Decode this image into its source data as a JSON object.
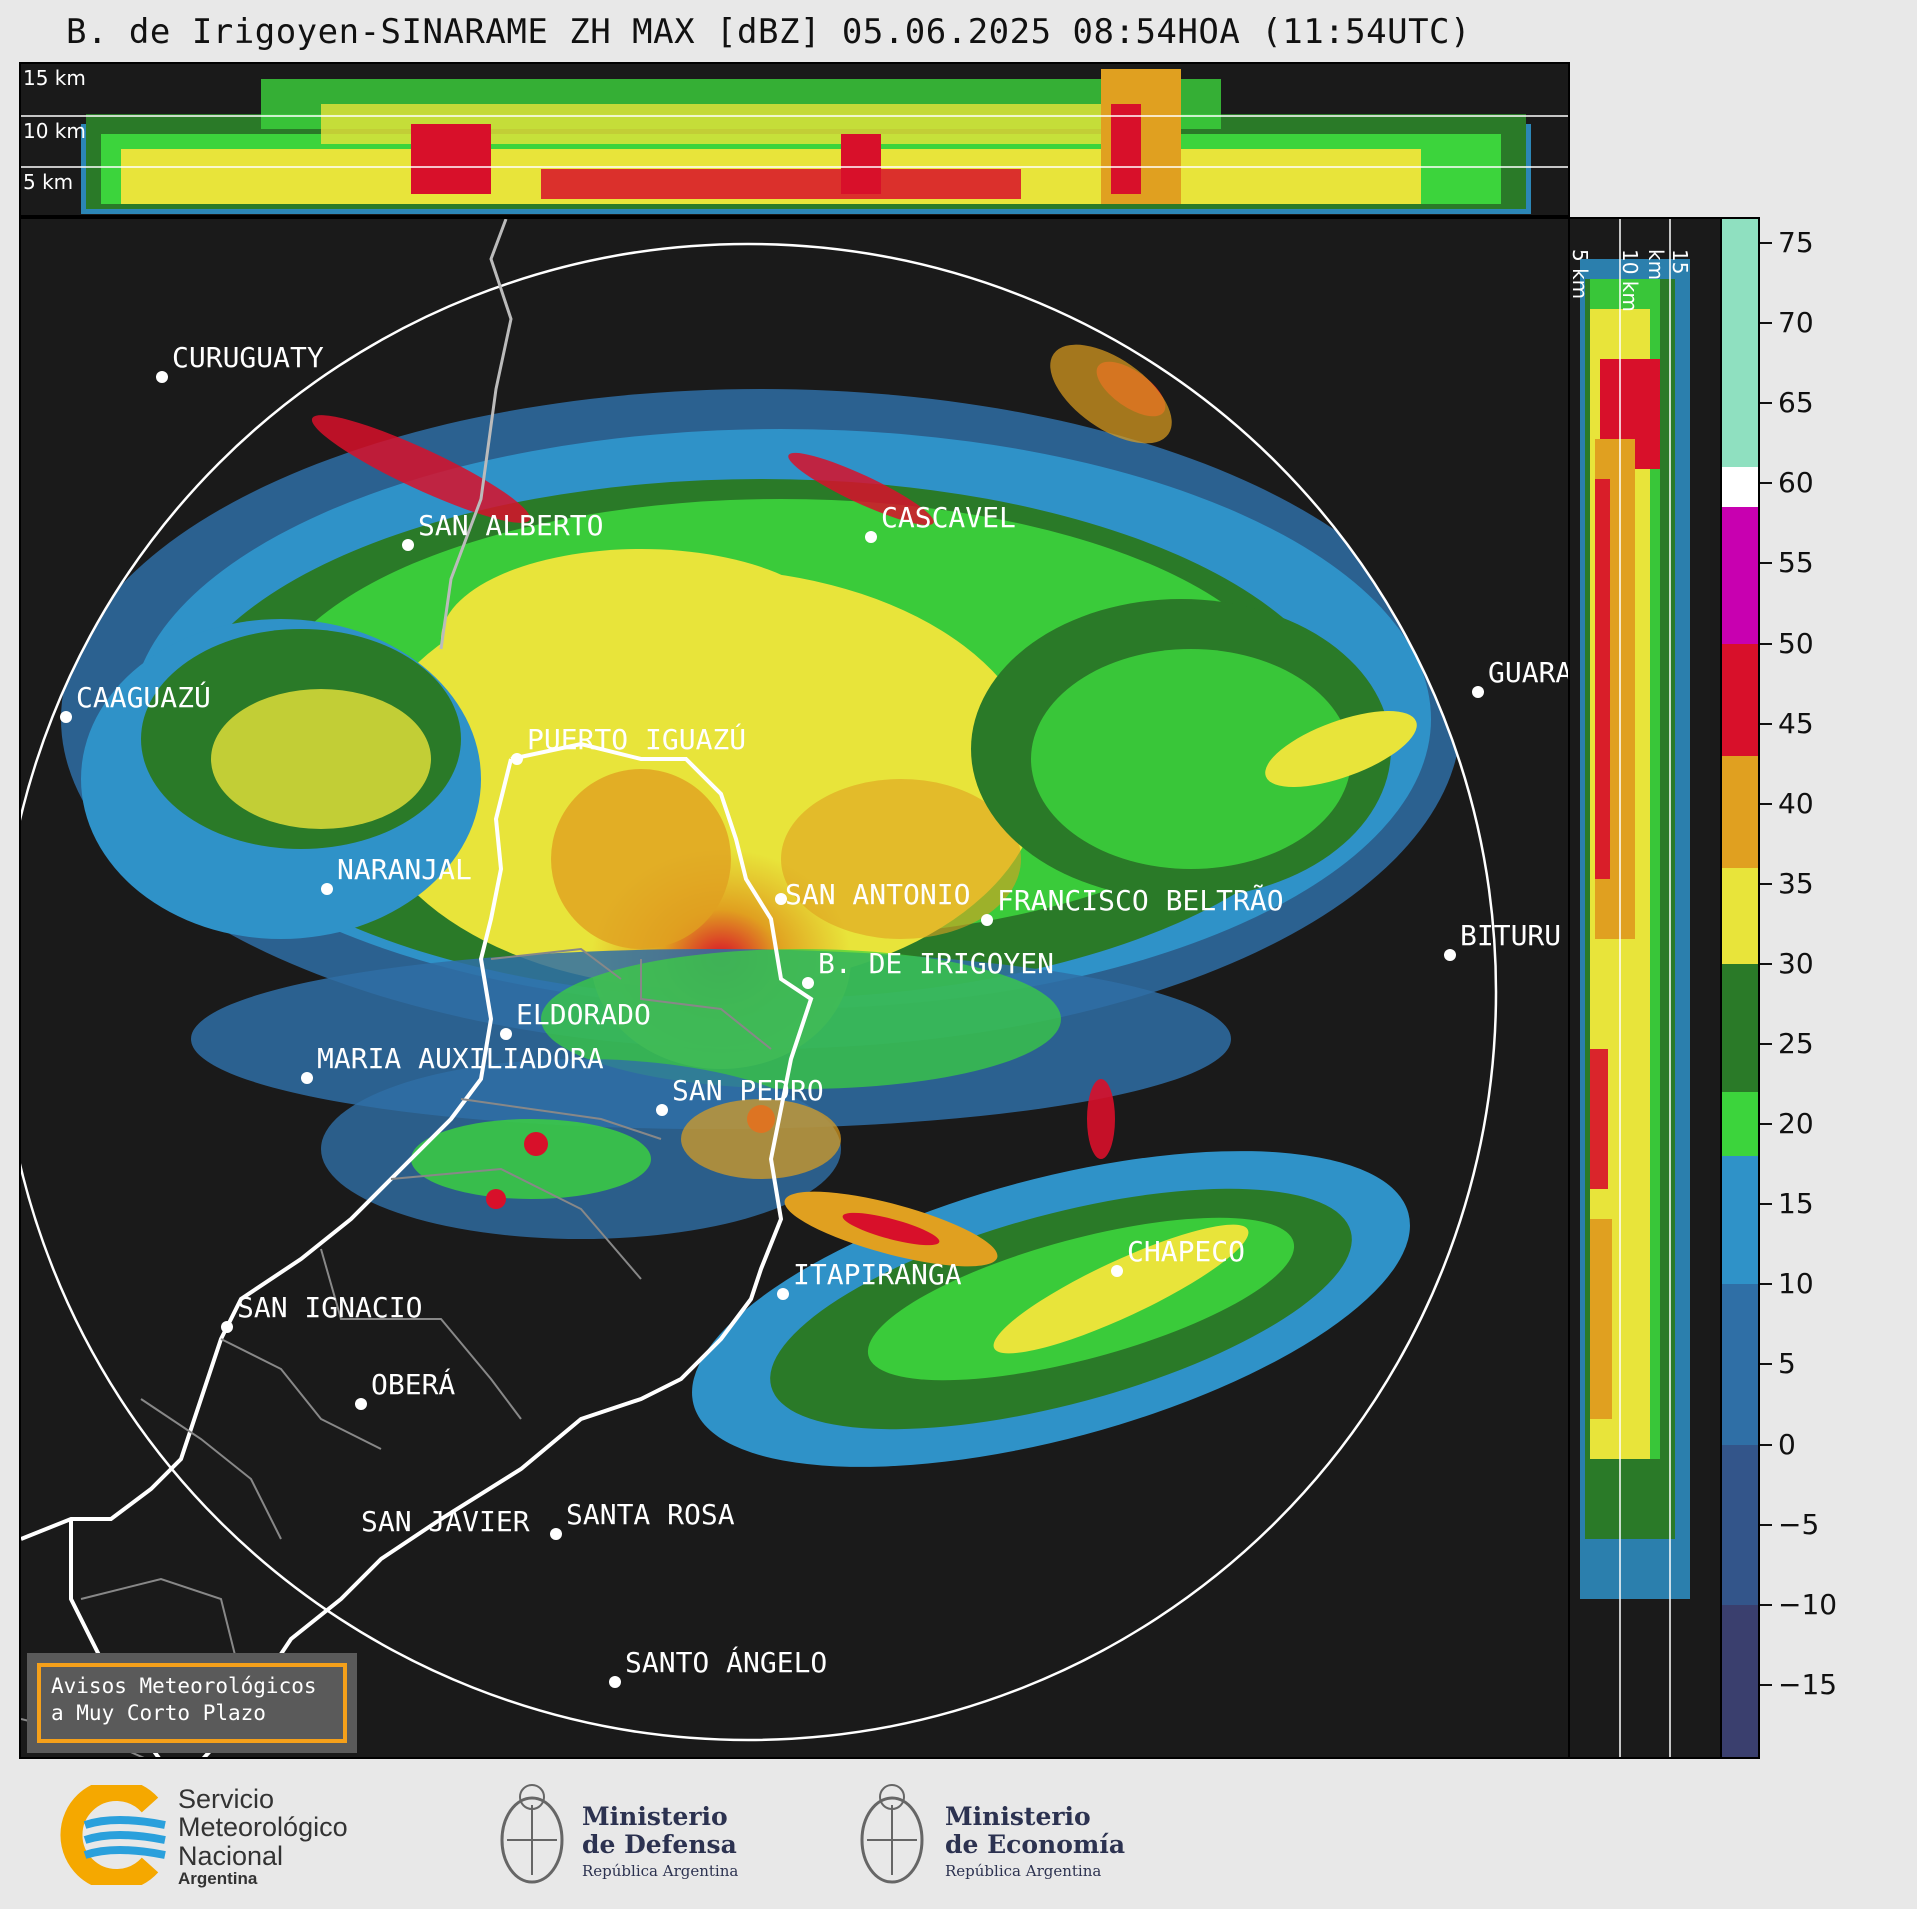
{
  "title": "B. de Irigoyen-SINARAME ZH MAX [dBZ] 05.06.2025 08:54HOA (11:54UTC)",
  "top_altitudes": [
    "15 km",
    "10 km",
    "5 km"
  ],
  "side_altitudes": [
    "5 km",
    "10 km",
    "15 km"
  ],
  "cities": [
    {
      "name": "CURUGUATY"
    },
    {
      "name": "SAN ALBERTO"
    },
    {
      "name": "CASCAVEL"
    },
    {
      "name": "CAAGUAZÚ"
    },
    {
      "name": "GUARA"
    },
    {
      "name": "PUERTO IGUAZÚ"
    },
    {
      "name": "NARANJAL"
    },
    {
      "name": "SAN ANTONIO"
    },
    {
      "name": "FRANCISCO BELTRÃO"
    },
    {
      "name": "BITURU"
    },
    {
      "name": "B. DE IRIGOYEN"
    },
    {
      "name": "ELDORADO"
    },
    {
      "name": "MARIA AUXILIADORA"
    },
    {
      "name": "SAN PEDRO"
    },
    {
      "name": "CHAPECO"
    },
    {
      "name": "ITAPIRANGA"
    },
    {
      "name": "SAN IGNACIO"
    },
    {
      "name": "OBERÁ"
    },
    {
      "name": "SAN JAVIER"
    },
    {
      "name": "SANTA ROSA"
    },
    {
      "name": "SANTO ÁNGELO"
    }
  ],
  "colorbar": {
    "unit": "dBZ",
    "min": -19.5,
    "max": 76.5,
    "ticks": [
      "75",
      "70",
      "65",
      "60",
      "55",
      "50",
      "45",
      "40",
      "35",
      "30",
      "25",
      "20",
      "15",
      "10",
      "5",
      "0",
      "−5",
      "−10",
      "−15"
    ],
    "stops": [
      {
        "from": -19.5,
        "to": -10,
        "color": "#3a3f6e"
      },
      {
        "from": -10,
        "to": 0,
        "color": "#33558a"
      },
      {
        "from": 0,
        "to": 10,
        "color": "#2f6fa6"
      },
      {
        "from": 10,
        "to": 18,
        "color": "#2f92c8"
      },
      {
        "from": 18,
        "to": 22,
        "color": "#3cd43c"
      },
      {
        "from": 22,
        "to": 30,
        "color": "#2a7a28"
      },
      {
        "from": 30,
        "to": 36,
        "color": "#e8e43a"
      },
      {
        "from": 36,
        "to": 43,
        "color": "#e0a020"
      },
      {
        "from": 43,
        "to": 50,
        "color": "#d8102a"
      },
      {
        "from": 50,
        "to": 58.5,
        "color": "#c800b0"
      },
      {
        "from": 58.5,
        "to": 61,
        "color": "#ffffff"
      },
      {
        "from": 61,
        "to": 76.5,
        "color": "#8fe0c0"
      }
    ]
  },
  "notice": {
    "line1": "Avisos Meteorológicos",
    "line2": "a Muy Corto Plazo"
  },
  "footer": {
    "smn": {
      "line1": "Servicio",
      "line2": "Meteorológico",
      "line3": "Nacional",
      "line4": "Argentina"
    },
    "defensa": {
      "line1": "Ministerio",
      "line2": "de Defensa",
      "sub": "República Argentina"
    },
    "economia": {
      "line1": "Ministerio",
      "line2": "de Economía",
      "sub": "República Argentina"
    }
  },
  "colors": {
    "background": "#1a1a1a",
    "ring": "#ffffff",
    "border": "#ffffff",
    "accent": "#f5a01a"
  }
}
